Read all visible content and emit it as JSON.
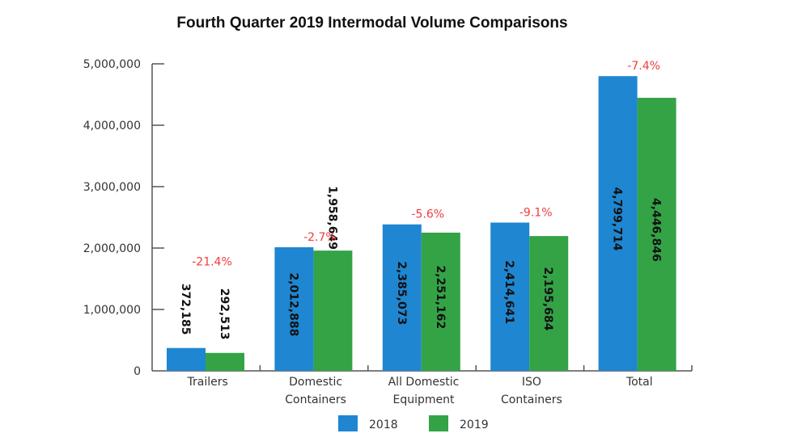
{
  "chart_data": {
    "type": "bar",
    "title": "Fourth Quarter 2019 Intermodal Volume Comparisons",
    "xlabel": "",
    "ylabel": "",
    "ylim": [
      0,
      5000000
    ],
    "yticks": [
      0,
      1000000,
      2000000,
      3000000,
      4000000,
      5000000
    ],
    "ytick_labels": [
      "0",
      "1,000,000",
      "2,000,000",
      "3,000,000",
      "4,000,000",
      "5,000,000"
    ],
    "grid": false,
    "legend_position": "bottom",
    "categories": [
      [
        "Trailers"
      ],
      [
        "Domestic",
        "Containers"
      ],
      [
        "All Domestic",
        "Equipment"
      ],
      [
        "ISO",
        "Containers"
      ],
      [
        "Total"
      ]
    ],
    "series": [
      {
        "name": "2018",
        "color": "#1f86d1",
        "values": [
          372185,
          2012888,
          2385073,
          2414641,
          4799714
        ],
        "labels": [
          "372,185",
          "2,012,888",
          "2,385,073",
          "2,414,641",
          "4,799,714"
        ]
      },
      {
        "name": "2019",
        "color": "#34a346",
        "values": [
          292513,
          1958649,
          2251162,
          2195684,
          4446846
        ],
        "labels": [
          "292,513",
          "1,958,649",
          "2,251,162",
          "2,195,684",
          "4,446,846"
        ]
      }
    ],
    "annotations": [
      "-21.4%",
      "-2.7%",
      "-5.6%",
      "-9.1%",
      "-7.4%"
    ],
    "annotation_color": "#f03c3c"
  }
}
